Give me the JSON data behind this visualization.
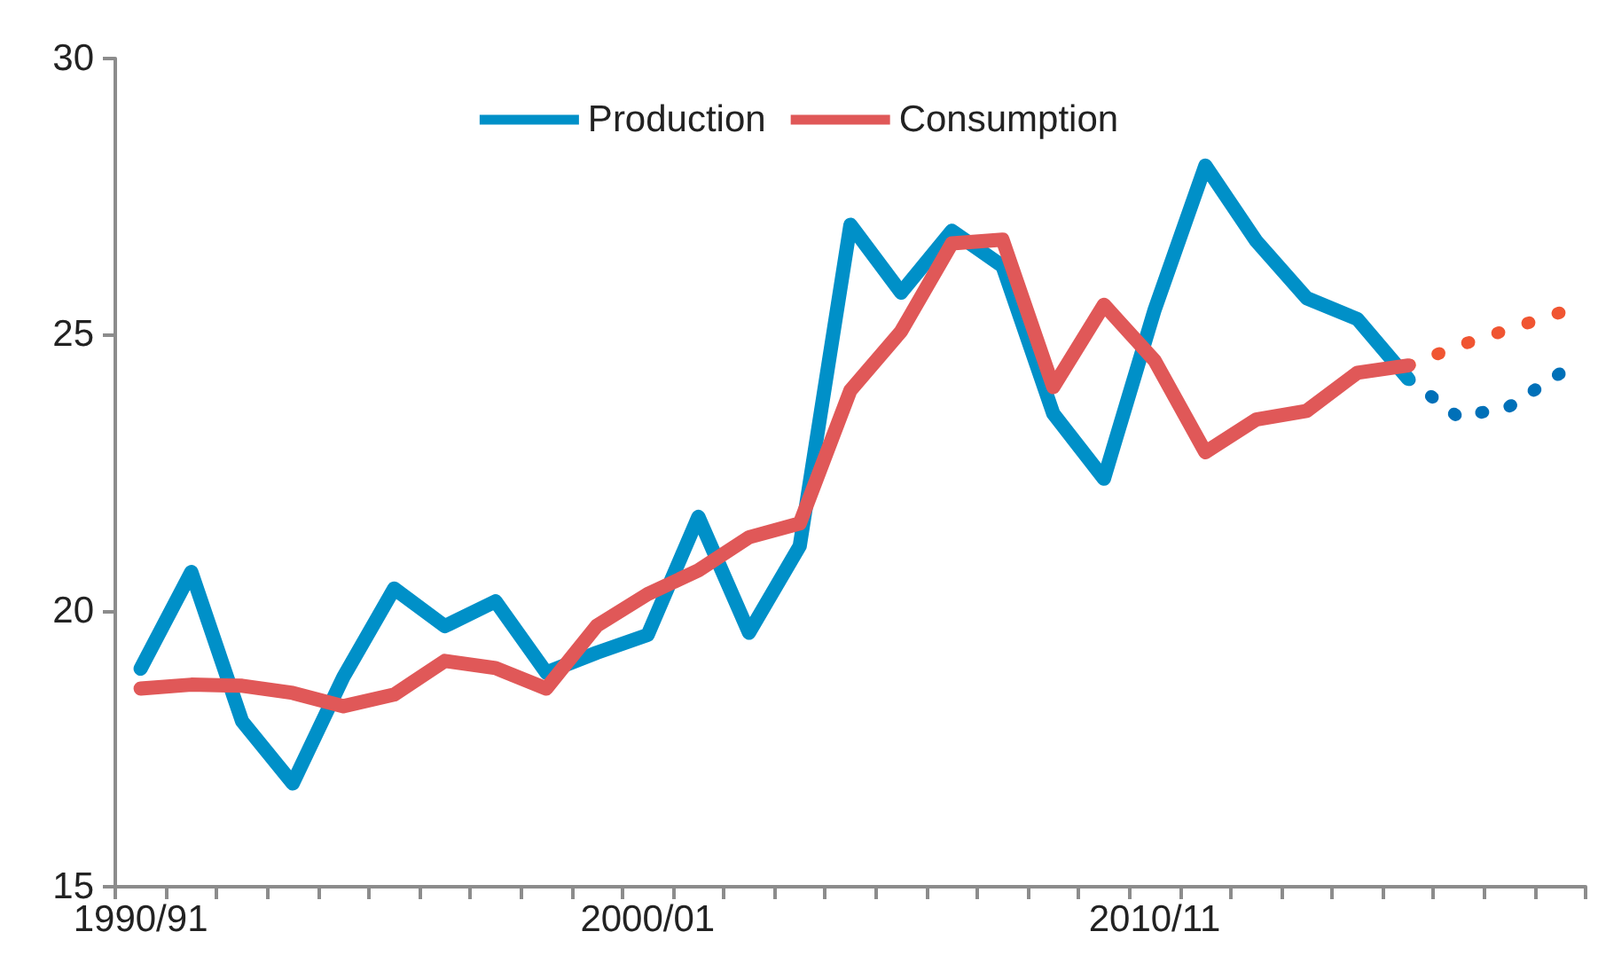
{
  "chart_data": {
    "type": "line",
    "categories": [
      "1990/91",
      null,
      null,
      null,
      null,
      null,
      null,
      null,
      null,
      null,
      "2000/01",
      null,
      null,
      null,
      null,
      null,
      null,
      null,
      null,
      null,
      "2010/11",
      null,
      null,
      null,
      null,
      null,
      null,
      null,
      null
    ],
    "series": [
      {
        "name": "Production",
        "color": "#0090c8",
        "line_style": "solid",
        "values": [
          18.95,
          20.7,
          18.0,
          16.87,
          18.8,
          20.4,
          19.72,
          20.17,
          18.88,
          19.24,
          19.56,
          21.7,
          19.6,
          21.17,
          26.99,
          25.76,
          26.88,
          26.24,
          23.57,
          22.39,
          25.45,
          28.06,
          26.7,
          25.66,
          25.28,
          24.2,
          null,
          null,
          null
        ]
      },
      {
        "name": "Consumption",
        "color": "#e05858",
        "line_style": "solid",
        "values": [
          18.59,
          18.66,
          18.64,
          18.51,
          18.27,
          18.48,
          19.09,
          18.96,
          18.59,
          19.73,
          20.3,
          20.73,
          21.33,
          21.58,
          23.99,
          25.06,
          26.65,
          26.72,
          24.05,
          25.54,
          24.53,
          22.87,
          23.46,
          23.62,
          24.31,
          24.44,
          null,
          null,
          null
        ]
      },
      {
        "color": "#0070b8",
        "line_style": "dotted",
        "values": [
          null,
          null,
          null,
          null,
          null,
          null,
          null,
          null,
          null,
          null,
          null,
          null,
          null,
          null,
          null,
          null,
          null,
          null,
          null,
          null,
          null,
          null,
          null,
          null,
          null,
          24.2,
          23.5,
          23.7,
          24.3
        ]
      },
      {
        "color": "#f05532",
        "line_style": "dotted",
        "values": [
          null,
          null,
          null,
          null,
          null,
          null,
          null,
          null,
          null,
          null,
          null,
          null,
          null,
          null,
          null,
          null,
          null,
          null,
          null,
          null,
          null,
          null,
          null,
          null,
          null,
          24.44,
          24.8,
          25.1,
          25.4
        ]
      }
    ],
    "ylim": [
      15,
      30
    ],
    "yticks": [
      15,
      20,
      25,
      30
    ],
    "grid": false,
    "legend": "top",
    "marker": "none"
  }
}
